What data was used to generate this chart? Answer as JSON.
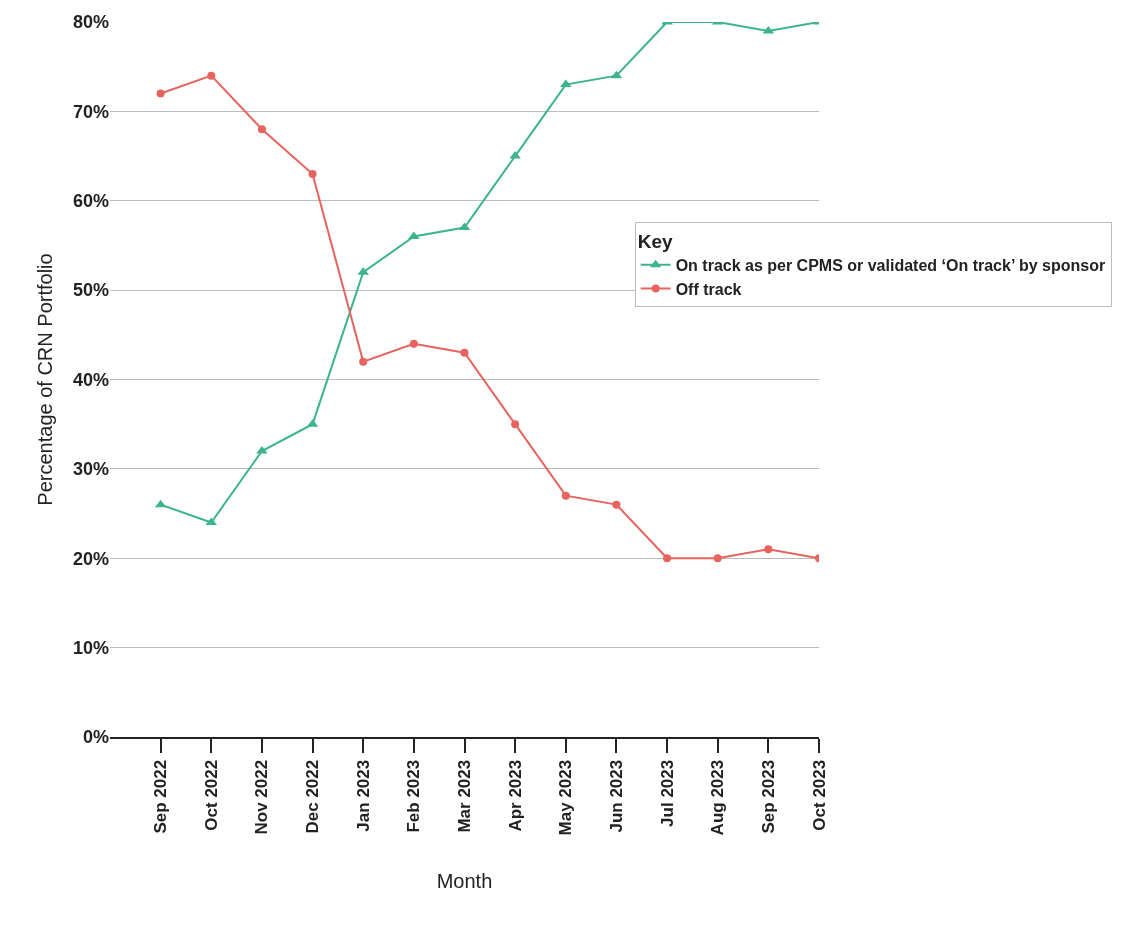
{
  "chart_data": {
    "type": "line",
    "xlabel": "Month",
    "ylabel": "Percentage of CRN Portfolio",
    "legend_title": "Key",
    "categories": [
      "Sep 2022",
      "Oct 2022",
      "Nov 2022",
      "Dec 2022",
      "Jan 2023",
      "Feb 2023",
      "Mar 2023",
      "Apr 2023",
      "May 2023",
      "Jun 2023",
      "Jul 2023",
      "Aug 2023",
      "Sep 2023",
      "Oct 2023"
    ],
    "series": [
      {
        "name": "On track as per CPMS or validated ‘On track’ by sponsor",
        "color": "#3cb48c",
        "marker": "triangle",
        "values": [
          26,
          24,
          32,
          35,
          52,
          56,
          57,
          65,
          73,
          74,
          80,
          80,
          79,
          80
        ]
      },
      {
        "name": "Off track",
        "color": "#e8625e",
        "marker": "circle",
        "values": [
          72,
          74,
          68,
          63,
          42,
          44,
          43,
          35,
          27,
          26,
          20,
          20,
          21,
          20
        ]
      }
    ],
    "ylim": [
      0,
      80
    ],
    "yticks": [
      {
        "value": 0,
        "label": "0%"
      },
      {
        "value": 10,
        "label": "10%"
      },
      {
        "value": 20,
        "label": "20%"
      },
      {
        "value": 30,
        "label": "30%"
      },
      {
        "value": 40,
        "label": "40%"
      },
      {
        "value": 50,
        "label": "50%"
      },
      {
        "value": 60,
        "label": "60%"
      },
      {
        "value": 70,
        "label": "70%"
      },
      {
        "value": 80,
        "label": "80%"
      }
    ],
    "grid": "y",
    "legend": "right",
    "line_style": "solid"
  }
}
